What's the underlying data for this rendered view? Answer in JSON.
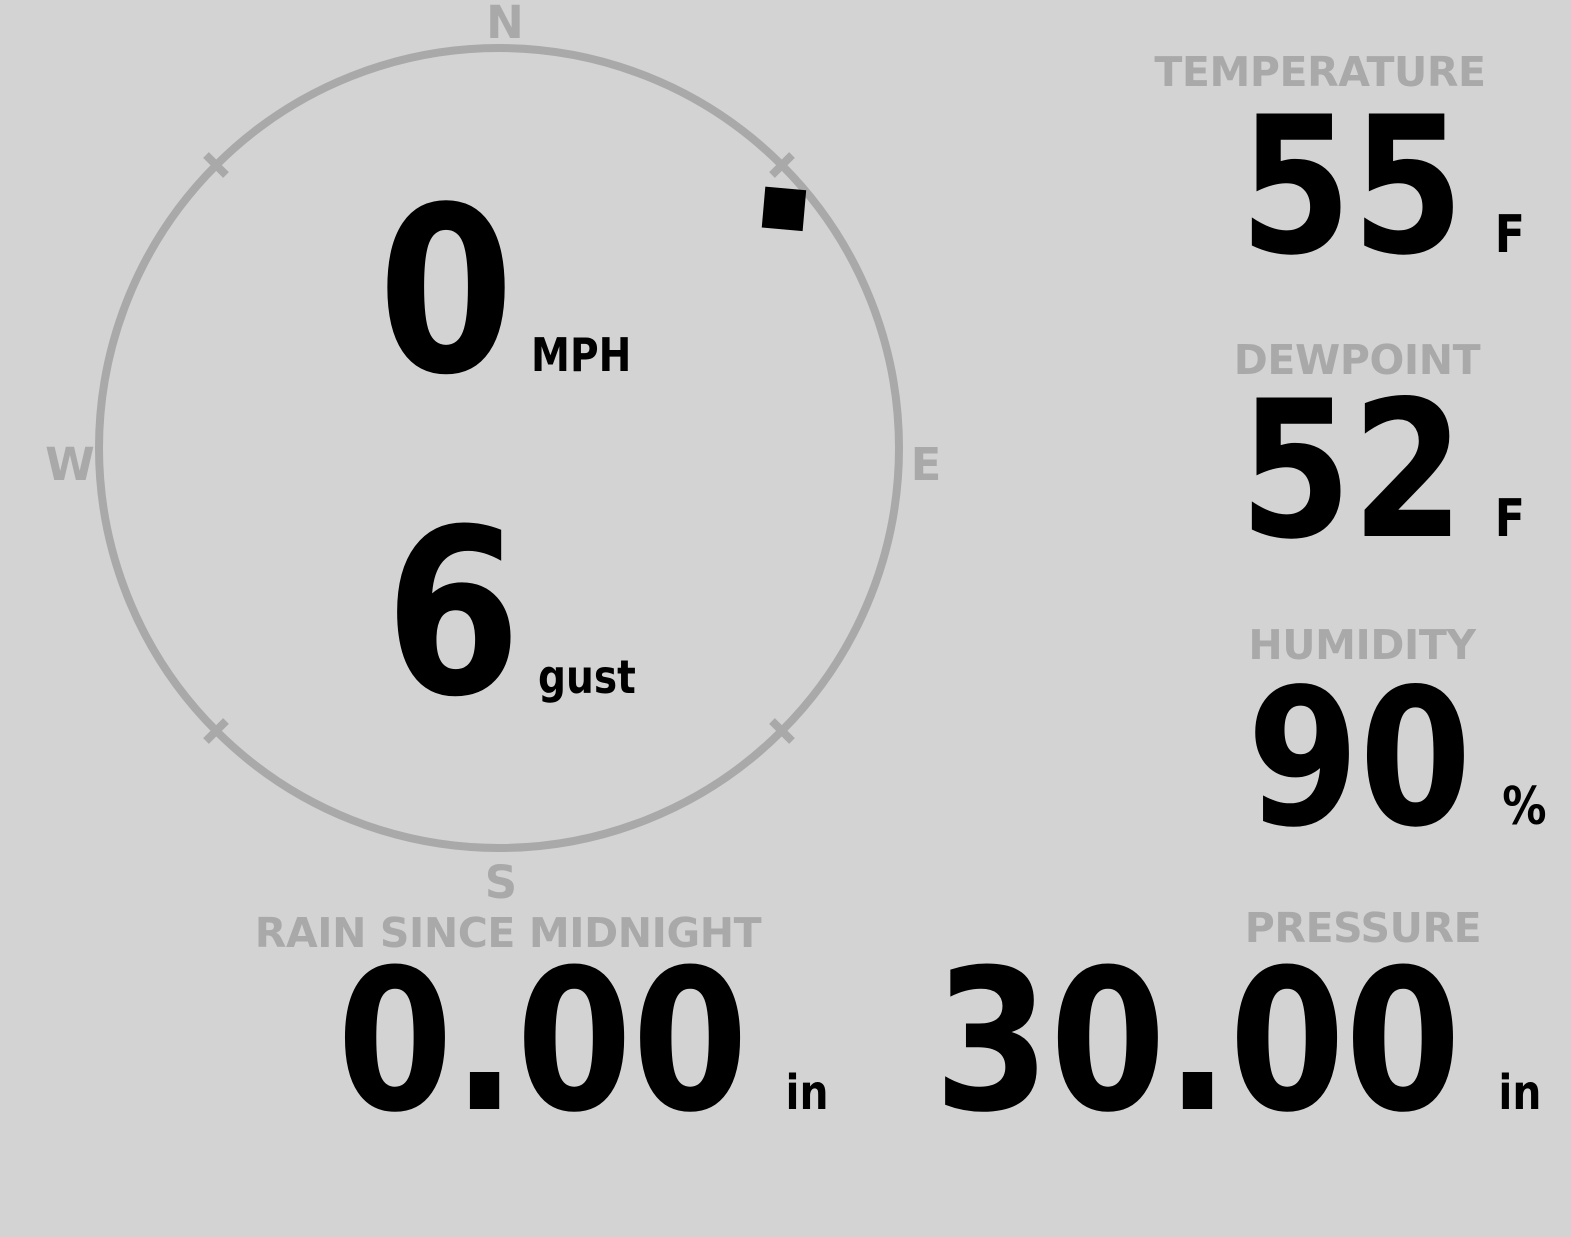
{
  "colors": {
    "background": "#d3d3d3",
    "muted": "#a9a9a9",
    "ink": "#000000"
  },
  "compass": {
    "cardinals": {
      "north": "N",
      "east": "E",
      "south": "S",
      "west": "W"
    },
    "wind_direction_deg": 50,
    "speed": {
      "value": "0",
      "unit": "MPH"
    },
    "gust": {
      "value": "6",
      "unit": "gust"
    }
  },
  "metrics": {
    "temperature": {
      "label": "TEMPERATURE",
      "value": "55",
      "unit": "F"
    },
    "dewpoint": {
      "label": "DEWPOINT",
      "value": "52",
      "unit": "F"
    },
    "humidity": {
      "label": "HUMIDITY",
      "value": "90",
      "unit": "%"
    },
    "rain_since_midnight": {
      "label": "RAIN SINCE MIDNIGHT",
      "value": "0.00",
      "unit": "in"
    },
    "pressure": {
      "label": "PRESSURE",
      "value": "30.00",
      "unit": "in"
    }
  }
}
